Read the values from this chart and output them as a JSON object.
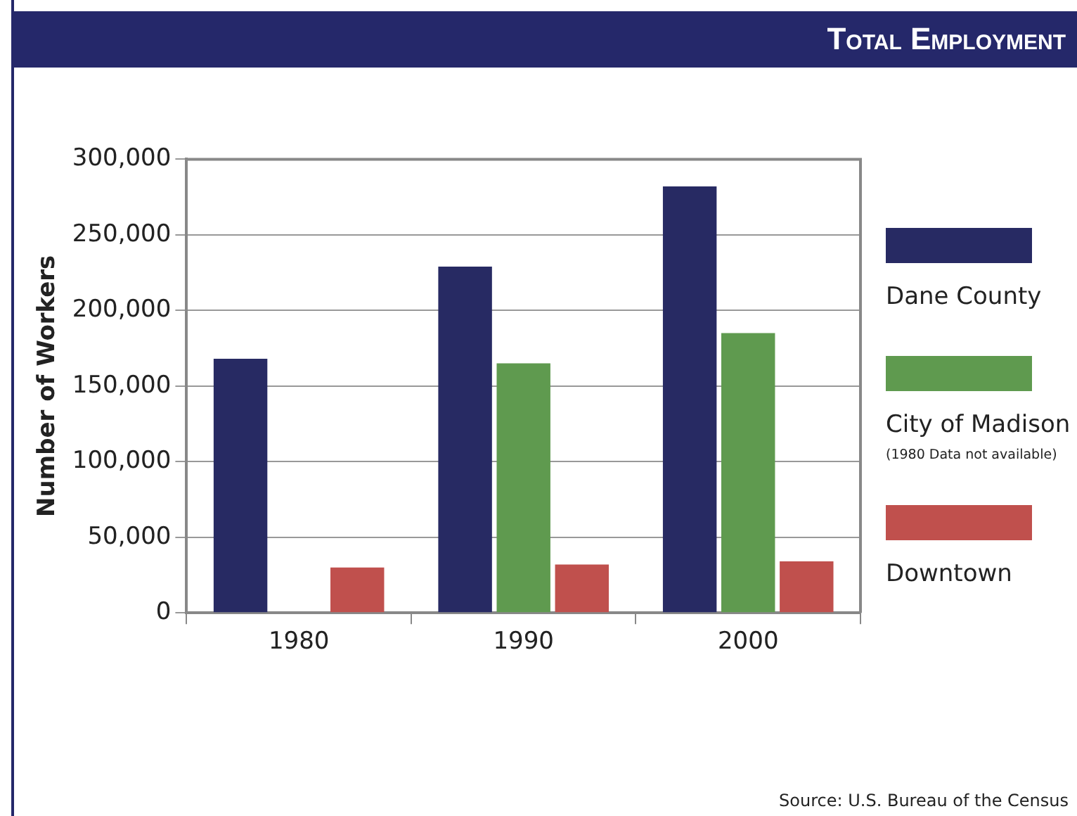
{
  "chart_data": {
    "type": "bar",
    "title": "Total Employment",
    "ylabel": "Number of Workers",
    "categories": [
      "1980",
      "1990",
      "2000"
    ],
    "series": [
      {
        "name": "Dane County",
        "color": "#272a63",
        "values": [
          168000,
          229000,
          282000
        ]
      },
      {
        "name": "City of Madison",
        "color": "#5f9a4f",
        "values": [
          null,
          165000,
          185000
        ]
      },
      {
        "name": "Downtown",
        "color": "#c0504d",
        "values": [
          30000,
          32000,
          34000
        ]
      }
    ],
    "ylim": [
      0,
      300000
    ],
    "yticks": [
      0,
      {
        "value": 50000,
        "label": "50,000"
      },
      {
        "value": 100000,
        "label": "100,000"
      },
      {
        "value": 150000,
        "label": "150,000"
      },
      {
        "value": 200000,
        "label": "200,000"
      },
      {
        "value": 250000,
        "label": "250,000"
      },
      {
        "value": 300000,
        "label": "300,000"
      }
    ],
    "grid": "y",
    "legend": "right",
    "annotations": [
      "(1980 Data not available)",
      "Source: U.S. Bureau of the Census"
    ]
  }
}
